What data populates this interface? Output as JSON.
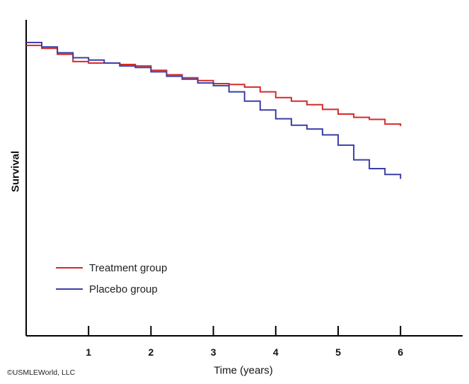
{
  "chart_data": {
    "type": "line",
    "title": "",
    "xlabel": "Time (years)",
    "ylabel": "Survival",
    "xlim": [
      0,
      7
    ],
    "ylim": [
      0,
      1
    ],
    "x_ticks": [
      1,
      2,
      3,
      4,
      5,
      6
    ],
    "legend_position": "bottom-left",
    "grid": false,
    "series": [
      {
        "name": "Treatment group",
        "color": "#d62a2a",
        "x": [
          0,
          0.25,
          0.5,
          0.75,
          1,
          1.25,
          1.5,
          1.75,
          2,
          2.25,
          2.5,
          2.75,
          3,
          3.25,
          3.5,
          3.75,
          4,
          4.25,
          4.5,
          4.75,
          5,
          5.25,
          5.5,
          5.75,
          6
        ],
        "y": [
          0.99,
          0.98,
          0.96,
          0.935,
          0.93,
          0.93,
          0.925,
          0.92,
          0.905,
          0.89,
          0.88,
          0.87,
          0.86,
          0.857,
          0.848,
          0.832,
          0.812,
          0.8,
          0.788,
          0.772,
          0.756,
          0.745,
          0.738,
          0.722,
          0.715
        ]
      },
      {
        "name": "Placebo group",
        "color": "#3b3fa8",
        "x": [
          0,
          0.25,
          0.5,
          0.75,
          1,
          1.25,
          1.5,
          1.75,
          2,
          2.25,
          2.5,
          2.75,
          3,
          3.25,
          3.5,
          3.75,
          4,
          4.25,
          4.5,
          4.75,
          5,
          5.25,
          5.5,
          5.75,
          6
        ],
        "y": [
          1.0,
          0.985,
          0.965,
          0.948,
          0.94,
          0.93,
          0.92,
          0.915,
          0.9,
          0.885,
          0.875,
          0.862,
          0.853,
          0.832,
          0.8,
          0.77,
          0.74,
          0.718,
          0.705,
          0.685,
          0.65,
          0.6,
          0.57,
          0.55,
          0.535
        ]
      }
    ]
  },
  "credit": "©USMLEWorld, LLC"
}
